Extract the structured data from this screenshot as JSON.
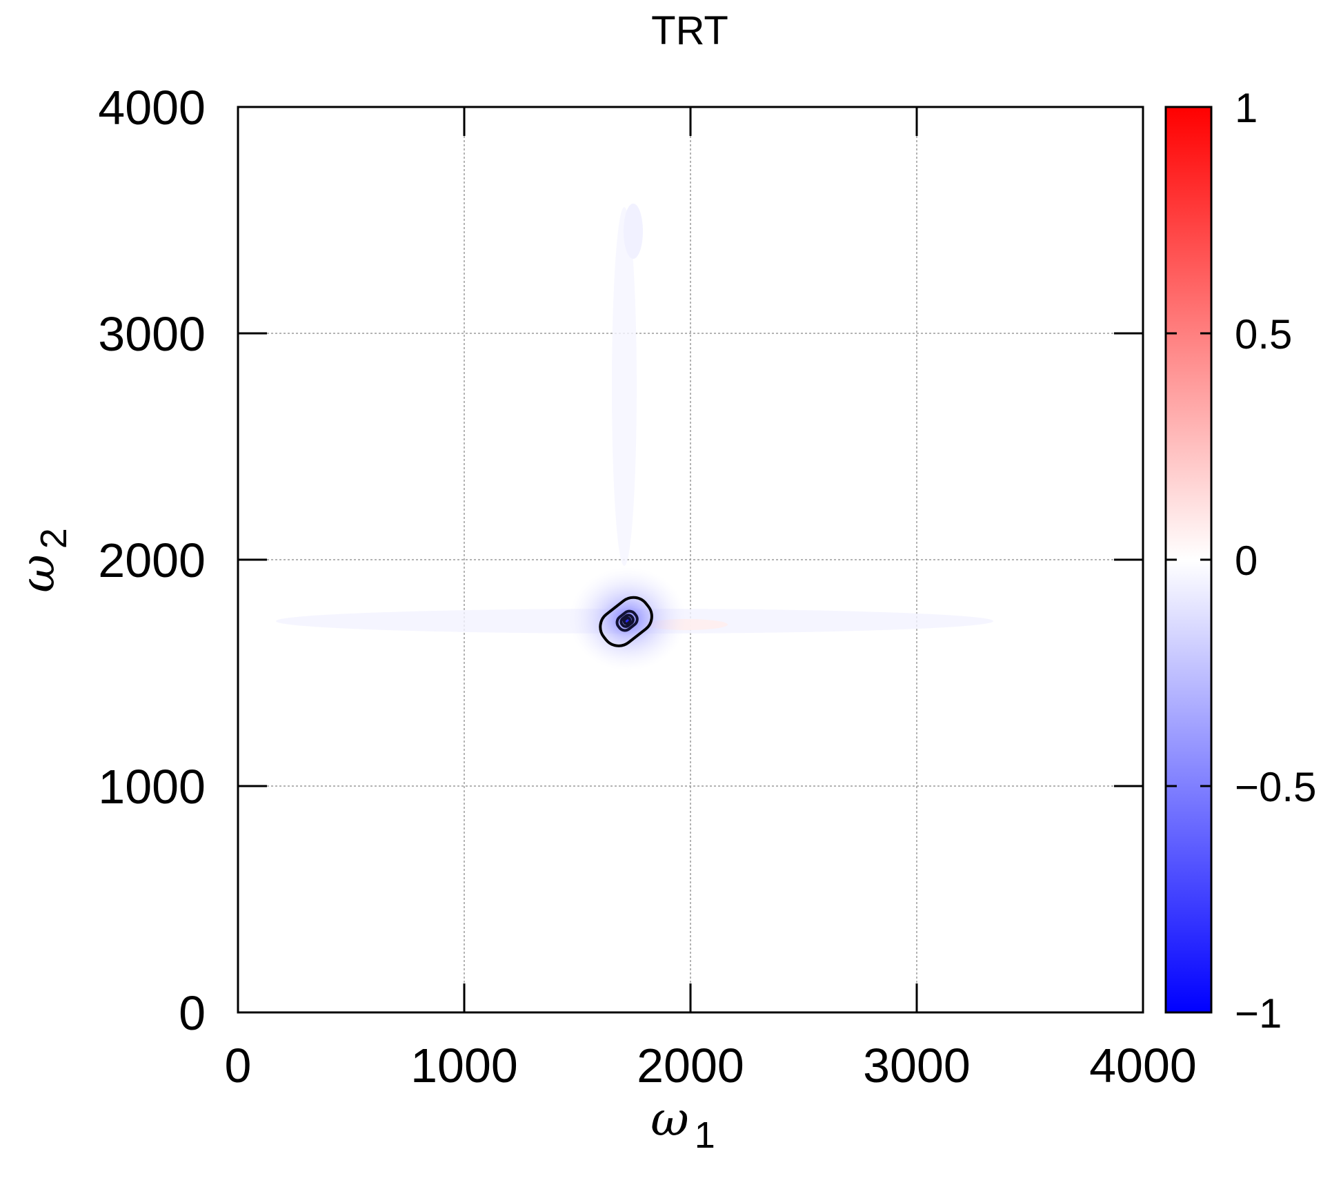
{
  "chart_data": {
    "type": "heatmap",
    "title": "TRT",
    "xlabel": {
      "symbol": "ω",
      "subscript": "1"
    },
    "ylabel": {
      "symbol": "ω",
      "subscript": "2"
    },
    "xlim": [
      0,
      4000
    ],
    "ylim": [
      0,
      4000
    ],
    "x_ticks": [
      "0",
      "1000",
      "2000",
      "3000",
      "4000"
    ],
    "y_ticks": [
      "0",
      "1000",
      "2000",
      "3000",
      "4000"
    ],
    "x_tick_values": [
      0,
      1000,
      2000,
      3000,
      4000
    ],
    "y_tick_values": [
      0,
      1000,
      2000,
      3000,
      4000
    ],
    "grid": true,
    "colorbar": {
      "range": [
        -1,
        1
      ],
      "ticks": [
        "1",
        "0.5",
        "0",
        "−0.5",
        "−1"
      ],
      "tick_values": [
        1,
        0.5,
        0,
        -0.5,
        -1
      ],
      "colors": {
        "low": "#0000ff",
        "mid": "#ffffff",
        "high": "#ff0000"
      }
    },
    "peak": {
      "x": 1720,
      "y": 1730,
      "value": -0.95
    },
    "contour_levels": [
      -0.15,
      -0.4,
      -0.6,
      -0.8
    ]
  }
}
